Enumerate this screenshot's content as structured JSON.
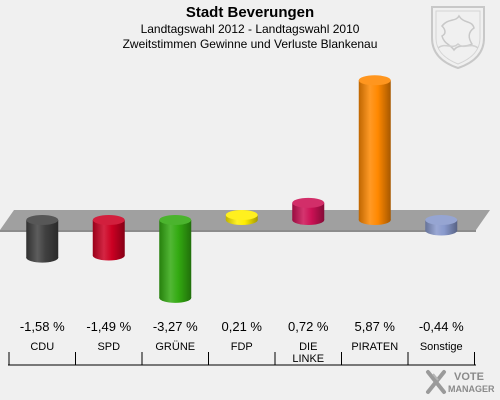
{
  "header": {
    "title": "Stadt Beverungen",
    "subtitle": "Landtagswahl 2012 - Landtagswahl 2010",
    "subtitle2": "Zweitstimmen Gewinne und Verluste Blankenau"
  },
  "logo": {
    "line1": "VOTE",
    "line2": "MANAGER"
  },
  "chart_data": {
    "type": "bar",
    "title": "Stadt Beverungen",
    "subtitle": "Landtagswahl 2012 - Landtagswahl 2010 · Zweitstimmen Gewinne und Verluste Blankenau",
    "categories": [
      "CDU",
      "SPD",
      "GRÜNE",
      "FDP",
      "DIE LINKE",
      "PIRATEN",
      "Sonstige"
    ],
    "values": [
      -1.58,
      -1.49,
      -3.27,
      0.21,
      0.72,
      5.87,
      -0.44
    ],
    "value_labels": [
      "-1,58 %",
      "-1,49 %",
      "-3,27 %",
      "0,21 %",
      "0,72 %",
      "5,87 %",
      "-0,44 %"
    ],
    "colors": [
      "#404040",
      "#cc0022",
      "#33aa11",
      "#ffee00",
      "#cc1155",
      "#ff8800",
      "#8899cc"
    ],
    "unit": "%",
    "grid": false,
    "legend": "none"
  }
}
